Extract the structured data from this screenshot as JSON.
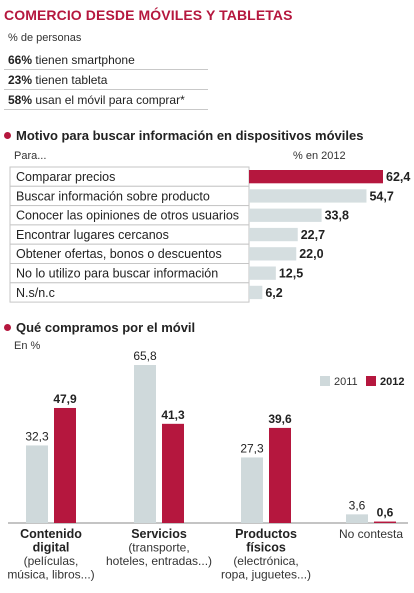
{
  "header": {
    "title": "COMERCIO DESDE MÓVILES Y TABLETAS",
    "unit": "% de personas"
  },
  "stats": [
    {
      "value": "66%",
      "text": "tienen smartphone"
    },
    {
      "value": "23%",
      "text": "tienen tableta"
    },
    {
      "value": "58%",
      "text": "usan el móvil para comprar*"
    }
  ],
  "colors": {
    "accent": "#b5173e",
    "grey_bar": "#cfd9db",
    "h_bar_grey": "#d5dee0"
  },
  "chart_data": [
    {
      "type": "bar",
      "orientation": "horizontal",
      "title": "Motivo para buscar información en dispositivos móviles",
      "row_header": "Para...",
      "value_header": "% en 2012",
      "categories": [
        "Comparar precios",
        "Buscar información sobre producto",
        "Conocer las opiniones de otros usuarios",
        "Encontrar lugares cercanos",
        "Obtener ofertas, bonos o descuentos",
        "No lo utilizo para buscar información",
        "N.s/n.c"
      ],
      "values": [
        62.4,
        54.7,
        33.8,
        22.7,
        22.0,
        12.5,
        6.2
      ],
      "value_labels": [
        "62,4",
        "54,7",
        "33,8",
        "22,7",
        "22,0",
        "12,5",
        "6,2"
      ],
      "highlight_index": 0
    },
    {
      "type": "bar",
      "title": "Qué compramos por el móvil",
      "ylabel": "En %",
      "categories": [
        {
          "bold": "Contenido digital",
          "detail": "(películas, música, libros...)"
        },
        {
          "bold": "Servicios",
          "detail": "(transporte, hoteles, entradas...)"
        },
        {
          "bold": "Productos físicos",
          "detail": "(electrónica, ropa, juguetes...)"
        },
        {
          "bold": "",
          "detail": "No contesta"
        }
      ],
      "series": [
        {
          "name": "2011",
          "values": [
            32.3,
            65.8,
            27.3,
            3.6
          ],
          "labels": [
            "32,3",
            "65,8",
            "27,3",
            "3,6"
          ]
        },
        {
          "name": "2012",
          "values": [
            47.9,
            41.3,
            39.6,
            0.6
          ],
          "labels": [
            "47,9",
            "41,3",
            "39,6",
            "0,6"
          ]
        }
      ],
      "ylim": [
        0,
        70
      ]
    }
  ]
}
